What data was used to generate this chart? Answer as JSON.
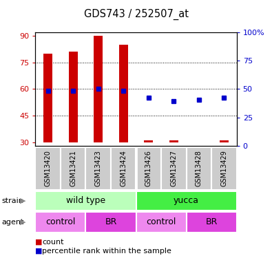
{
  "title": "GDS743 / 252507_at",
  "samples": [
    "GSM13420",
    "GSM13421",
    "GSM13423",
    "GSM13424",
    "GSM13426",
    "GSM13427",
    "GSM13428",
    "GSM13429"
  ],
  "bar_tops": [
    80,
    81,
    90,
    85,
    31,
    31,
    30,
    31
  ],
  "bar_base": 30,
  "blue_y_left": [
    59,
    59,
    60,
    59,
    55,
    53,
    54,
    55
  ],
  "ylim_left": [
    28,
    92
  ],
  "yticks_left": [
    30,
    45,
    60,
    75,
    90
  ],
  "ylim_right": [
    0,
    100
  ],
  "yticks_right": [
    0,
    25,
    50,
    75,
    100
  ],
  "ytick_right_labels": [
    "0",
    "25",
    "50",
    "75",
    "100%"
  ],
  "bar_color": "#CC0000",
  "blue_color": "#0000CC",
  "bar_width": 0.35,
  "strain_labels": [
    "wild type",
    "yucca"
  ],
  "strain_colors": [
    "#BBFFBB",
    "#44EE44"
  ],
  "agent_labels": [
    "control",
    "BR",
    "control",
    "BR"
  ],
  "agent_colors_light": "#EE88EE",
  "agent_colors_dark": "#DD44DD",
  "grid_color": "black",
  "tick_color_left": "#CC0000",
  "tick_color_right": "#0000CC",
  "sample_label_bg": "#CCCCCC",
  "sample_label_color": "black",
  "legend_red": "#CC0000",
  "legend_blue": "#0000CC"
}
